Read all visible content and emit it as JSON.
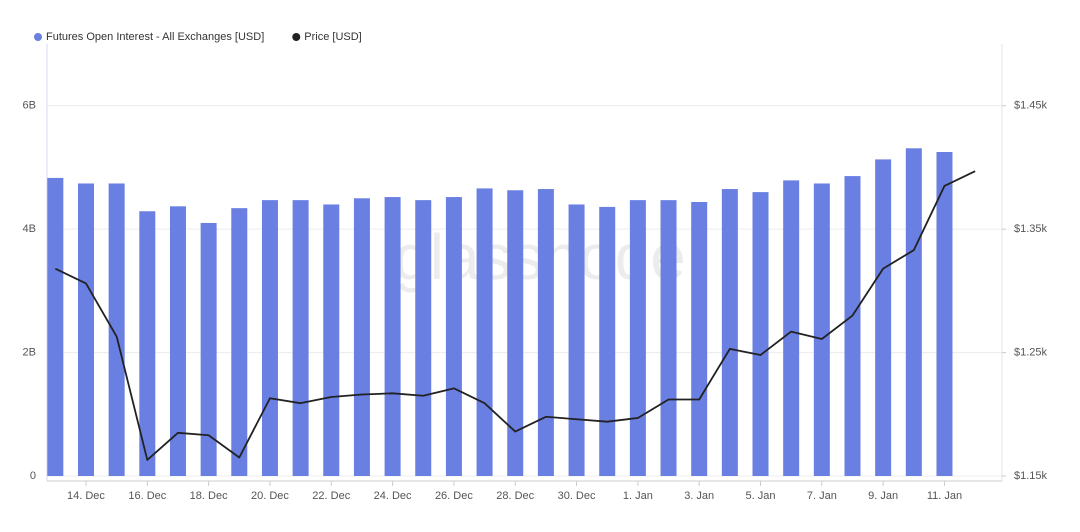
{
  "chart_data": {
    "type": "bar-line",
    "watermark": "glassnode",
    "categories": [
      null,
      "14. Dec",
      null,
      "16. Dec",
      null,
      "18. Dec",
      null,
      "20. Dec",
      null,
      "22. Dec",
      null,
      "24. Dec",
      null,
      "26. Dec",
      null,
      "28. Dec",
      null,
      "30. Dec",
      null,
      "1. Jan",
      null,
      "3. Jan",
      null,
      "5. Jan",
      null,
      "7. Jan",
      null,
      "9. Jan",
      null,
      "11. Jan",
      null
    ],
    "series": [
      {
        "name": "Futures Open Interest - All Exchanges [USD]",
        "color": "#6a7fe2",
        "type": "bar",
        "axis": "y",
        "values": [
          4.83,
          4.74,
          4.74,
          4.29,
          4.37,
          4.1,
          4.34,
          4.47,
          4.47,
          4.4,
          4.5,
          4.52,
          4.47,
          4.52,
          4.66,
          4.63,
          4.65,
          4.4,
          4.36,
          4.47,
          4.47,
          4.44,
          4.65,
          4.6,
          4.79,
          4.74,
          4.86,
          5.13,
          5.31,
          5.25,
          null
        ]
      },
      {
        "name": "Price [USD]",
        "color": "#222222",
        "type": "line",
        "axis": "y2",
        "values": [
          1318,
          1306,
          1263,
          1163,
          1185,
          1183,
          1165,
          1213,
          1209,
          1214,
          1216,
          1217,
          1215,
          1221,
          1209,
          1186,
          1198,
          1196,
          1194,
          1197,
          1212,
          1212,
          1253,
          1248,
          1267,
          1261,
          1280,
          1318,
          1333,
          1385,
          1397
        ]
      }
    ],
    "ylim": [
      0,
      7
    ],
    "yticks": [
      0,
      {
        "value": 2,
        "label": "2B"
      },
      {
        "value": 4,
        "label": "4B"
      },
      {
        "value": 6,
        "label": "6B"
      }
    ],
    "y2lim": [
      1150,
      1500
    ],
    "y2ticks": [
      {
        "value": 1150,
        "label": "$1.15k"
      },
      {
        "value": 1250,
        "label": "$1.25k"
      },
      {
        "value": 1350,
        "label": "$1.35k"
      },
      {
        "value": 1450,
        "label": "$1.45k"
      }
    ],
    "grid": true
  }
}
